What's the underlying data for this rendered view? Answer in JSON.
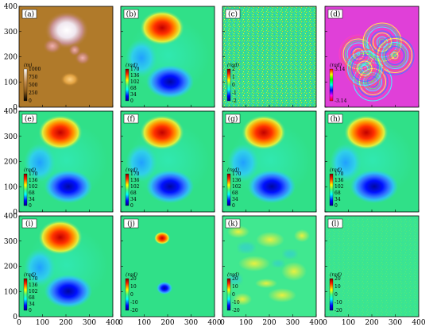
{
  "axis_ticks": {
    "y": [
      "0",
      "100",
      "200",
      "300",
      "400"
    ],
    "x": [
      "0",
      "100",
      "200",
      "300",
      "400"
    ]
  },
  "panels": [
    {
      "label": "(a)",
      "kind": "dem",
      "unit": "(m)",
      "colorbar": [
        "1000",
        "750",
        "500",
        "250",
        "0"
      ]
    },
    {
      "label": "(b)",
      "kind": "phase",
      "unit": "(rad)",
      "colorbar": [
        "170",
        "136",
        "102",
        "68",
        "34",
        "0"
      ]
    },
    {
      "label": "(c)",
      "kind": "noise",
      "unit": "(rad)",
      "colorbar": [
        "2",
        "1",
        "0",
        "-1",
        "-2"
      ]
    },
    {
      "label": "(d)",
      "kind": "wrapped",
      "unit": "(rad)",
      "colorbar": [
        "3.14",
        "-3.14"
      ]
    },
    {
      "label": "(e)",
      "kind": "phase",
      "unit": "(rad)",
      "colorbar": [
        "170",
        "136",
        "102",
        "68",
        "34",
        "0"
      ]
    },
    {
      "label": "(f)",
      "kind": "phase",
      "unit": "(rad)",
      "colorbar": [
        "170",
        "136",
        "102",
        "68",
        "34",
        "0"
      ]
    },
    {
      "label": "(g)",
      "kind": "phase",
      "unit": "(rad)",
      "colorbar": [
        "170",
        "136",
        "102",
        "68",
        "34",
        "0"
      ]
    },
    {
      "label": "(h)",
      "kind": "phase",
      "unit": "(rad)",
      "colorbar": [
        "170",
        "136",
        "102",
        "68",
        "34",
        "0"
      ]
    },
    {
      "label": "(i)",
      "kind": "phase",
      "unit": "(rad)",
      "colorbar": [
        "170",
        "136",
        "102",
        "68",
        "34",
        "0"
      ]
    },
    {
      "label": "(j)",
      "kind": "diff_small",
      "unit": "(rad)",
      "colorbar": [
        "20",
        "10",
        "0",
        "-10",
        "-20"
      ]
    },
    {
      "label": "(k)",
      "kind": "diff_blotch",
      "unit": "(rad)",
      "colorbar": [
        "20",
        "10",
        "0",
        "-10",
        "-20"
      ]
    },
    {
      "label": "(l)",
      "kind": "diff_flat",
      "unit": "(rad)",
      "colorbar": [
        "20",
        "10",
        "0",
        "-10",
        "-20"
      ]
    }
  ],
  "colors": {
    "background_green": "#27e08a",
    "jet_red": "#e82010",
    "jet_blue": "#1018d8",
    "dem_brown": "#b07a2a",
    "wrapped_magenta": "#e040d8"
  }
}
